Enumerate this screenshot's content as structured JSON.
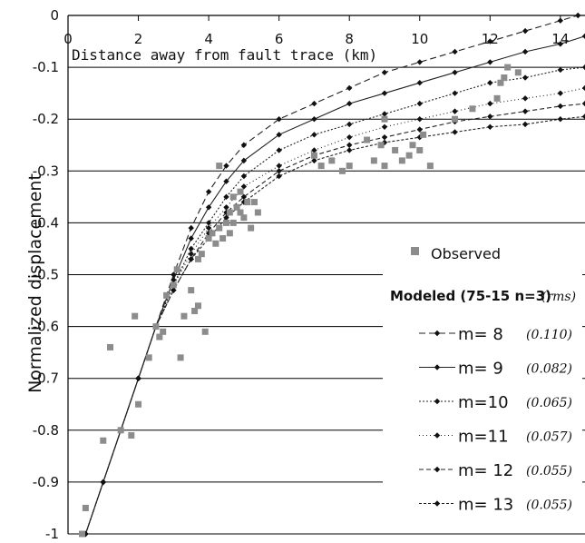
{
  "chart_data": {
    "type": "scatter",
    "title": "",
    "xlabel": "Distance away from fault trace (km)",
    "ylabel": "Normalized displacement",
    "xlim": [
      0,
      14.7
    ],
    "ylim": [
      -1,
      0
    ],
    "x_ticks": [
      "0",
      "2",
      "4",
      "6",
      "8",
      "10",
      "12",
      "14"
    ],
    "y_ticks": [
      "0",
      "-0.1",
      "-0.2",
      "-0.3",
      "-0.4",
      "-0.5",
      "-0.6",
      "-0.7",
      "-0.8",
      "-0.9",
      "-1"
    ],
    "grid": "horizontal",
    "legend_position": "right",
    "legend": {
      "observed_label": "Observed",
      "modeled_title": "Modeled (75-15 n=3)",
      "modeled_unit": "(rms)"
    },
    "observed": {
      "name": "Observed",
      "color": "#8c8c8c",
      "points": [
        [
          0.4,
          -1.0
        ],
        [
          0.5,
          -0.95
        ],
        [
          1.0,
          -0.82
        ],
        [
          1.2,
          -0.64
        ],
        [
          1.5,
          -0.8
        ],
        [
          1.8,
          -0.81
        ],
        [
          1.9,
          -0.58
        ],
        [
          2.0,
          -0.75
        ],
        [
          2.3,
          -0.66
        ],
        [
          2.5,
          -0.6
        ],
        [
          2.6,
          -0.62
        ],
        [
          2.7,
          -0.61
        ],
        [
          2.8,
          -0.54
        ],
        [
          3.0,
          -0.52
        ],
        [
          3.1,
          -0.49
        ],
        [
          3.2,
          -0.66
        ],
        [
          3.3,
          -0.58
        ],
        [
          3.5,
          -0.53
        ],
        [
          3.6,
          -0.57
        ],
        [
          3.7,
          -0.56
        ],
        [
          3.9,
          -0.61
        ],
        [
          3.7,
          -0.47
        ],
        [
          3.8,
          -0.46
        ],
        [
          4.0,
          -0.43
        ],
        [
          4.1,
          -0.42
        ],
        [
          4.2,
          -0.44
        ],
        [
          4.3,
          -0.29
        ],
        [
          4.3,
          -0.41
        ],
        [
          4.4,
          -0.43
        ],
        [
          4.5,
          -0.4
        ],
        [
          4.6,
          -0.38
        ],
        [
          4.6,
          -0.42
        ],
        [
          4.7,
          -0.35
        ],
        [
          4.7,
          -0.4
        ],
        [
          4.8,
          -0.37
        ],
        [
          4.9,
          -0.34
        ],
        [
          4.9,
          -0.38
        ],
        [
          5.0,
          -0.39
        ],
        [
          5.1,
          -0.36
        ],
        [
          5.2,
          -0.41
        ],
        [
          5.3,
          -0.36
        ],
        [
          5.4,
          -0.38
        ],
        [
          7.0,
          -0.27
        ],
        [
          7.2,
          -0.29
        ],
        [
          7.5,
          -0.28
        ],
        [
          7.8,
          -0.3
        ],
        [
          8.0,
          -0.29
        ],
        [
          8.5,
          -0.24
        ],
        [
          8.7,
          -0.28
        ],
        [
          8.9,
          -0.25
        ],
        [
          9.0,
          -0.29
        ],
        [
          9.0,
          -0.2
        ],
        [
          9.3,
          -0.26
        ],
        [
          9.5,
          -0.28
        ],
        [
          9.7,
          -0.27
        ],
        [
          9.8,
          -0.25
        ],
        [
          10.0,
          -0.26
        ],
        [
          10.1,
          -0.23
        ],
        [
          10.3,
          -0.29
        ],
        [
          11.0,
          -0.2
        ],
        [
          11.5,
          -0.18
        ],
        [
          12.2,
          -0.16
        ],
        [
          12.3,
          -0.13
        ],
        [
          12.4,
          -0.12
        ],
        [
          12.5,
          -0.1
        ],
        [
          12.8,
          -0.11
        ]
      ]
    },
    "series": [
      {
        "name": "m=  8",
        "m": "8",
        "rms": "(0.110)",
        "dash": "7 4",
        "points": [
          [
            0.5,
            -1.0
          ],
          [
            1.0,
            -0.9
          ],
          [
            1.5,
            -0.8
          ],
          [
            2.0,
            -0.7
          ],
          [
            2.5,
            -0.6
          ],
          [
            3.0,
            -0.5
          ],
          [
            3.5,
            -0.41
          ],
          [
            4.0,
            -0.34
          ],
          [
            4.5,
            -0.29
          ],
          [
            5.0,
            -0.25
          ],
          [
            6.0,
            -0.2
          ],
          [
            7.0,
            -0.17
          ],
          [
            8.0,
            -0.14
          ],
          [
            9.0,
            -0.11
          ],
          [
            10.0,
            -0.09
          ],
          [
            11.0,
            -0.07
          ],
          [
            12.0,
            -0.05
          ],
          [
            13.0,
            -0.03
          ],
          [
            14.0,
            -0.01
          ],
          [
            14.5,
            0.0
          ]
        ]
      },
      {
        "name": "m=  9",
        "m": "9",
        "rms": "(0.082)",
        "dash": "",
        "points": [
          [
            0.5,
            -1.0
          ],
          [
            1.0,
            -0.9
          ],
          [
            1.5,
            -0.8
          ],
          [
            2.0,
            -0.7
          ],
          [
            2.5,
            -0.6
          ],
          [
            3.0,
            -0.51
          ],
          [
            3.5,
            -0.43
          ],
          [
            4.0,
            -0.37
          ],
          [
            4.5,
            -0.32
          ],
          [
            5.0,
            -0.28
          ],
          [
            6.0,
            -0.23
          ],
          [
            7.0,
            -0.2
          ],
          [
            8.0,
            -0.17
          ],
          [
            9.0,
            -0.15
          ],
          [
            10.0,
            -0.13
          ],
          [
            11.0,
            -0.11
          ],
          [
            12.0,
            -0.09
          ],
          [
            13.0,
            -0.07
          ],
          [
            14.0,
            -0.055
          ],
          [
            14.7,
            -0.04
          ]
        ]
      },
      {
        "name": "m=10",
        "m": "10",
        "rms": "(0.065)",
        "dash": "2 2",
        "points": [
          [
            0.5,
            -1.0
          ],
          [
            1.0,
            -0.9
          ],
          [
            1.5,
            -0.8
          ],
          [
            2.0,
            -0.7
          ],
          [
            2.5,
            -0.6
          ],
          [
            3.0,
            -0.52
          ],
          [
            3.5,
            -0.45
          ],
          [
            4.0,
            -0.4
          ],
          [
            4.5,
            -0.35
          ],
          [
            5.0,
            -0.31
          ],
          [
            6.0,
            -0.26
          ],
          [
            7.0,
            -0.23
          ],
          [
            8.0,
            -0.21
          ],
          [
            9.0,
            -0.19
          ],
          [
            10.0,
            -0.17
          ],
          [
            11.0,
            -0.15
          ],
          [
            12.0,
            -0.13
          ],
          [
            13.0,
            -0.12
          ],
          [
            14.0,
            -0.105
          ],
          [
            14.7,
            -0.1
          ]
        ]
      },
      {
        "name": "m=11",
        "m": "11",
        "rms": "(0.057)",
        "dash": "1 3",
        "points": [
          [
            0.5,
            -1.0
          ],
          [
            1.0,
            -0.9
          ],
          [
            1.5,
            -0.8
          ],
          [
            2.0,
            -0.7
          ],
          [
            2.5,
            -0.6
          ],
          [
            3.0,
            -0.52
          ],
          [
            3.5,
            -0.46
          ],
          [
            4.0,
            -0.41
          ],
          [
            4.5,
            -0.37
          ],
          [
            5.0,
            -0.33
          ],
          [
            6.0,
            -0.29
          ],
          [
            7.0,
            -0.26
          ],
          [
            8.0,
            -0.235
          ],
          [
            9.0,
            -0.215
          ],
          [
            10.0,
            -0.2
          ],
          [
            11.0,
            -0.185
          ],
          [
            12.0,
            -0.17
          ],
          [
            13.0,
            -0.16
          ],
          [
            14.0,
            -0.15
          ],
          [
            14.7,
            -0.14
          ]
        ]
      },
      {
        "name": "m= 12",
        "m": "12",
        "rms": "(0.055)",
        "dash": "5 3",
        "points": [
          [
            0.5,
            -1.0
          ],
          [
            1.0,
            -0.9
          ],
          [
            1.5,
            -0.8
          ],
          [
            2.0,
            -0.7
          ],
          [
            2.5,
            -0.6
          ],
          [
            3.0,
            -0.53
          ],
          [
            3.5,
            -0.47
          ],
          [
            4.0,
            -0.42
          ],
          [
            4.5,
            -0.38
          ],
          [
            5.0,
            -0.35
          ],
          [
            6.0,
            -0.3
          ],
          [
            7.0,
            -0.27
          ],
          [
            8.0,
            -0.25
          ],
          [
            9.0,
            -0.235
          ],
          [
            10.0,
            -0.22
          ],
          [
            11.0,
            -0.205
          ],
          [
            12.0,
            -0.195
          ],
          [
            13.0,
            -0.185
          ],
          [
            14.0,
            -0.175
          ],
          [
            14.7,
            -0.17
          ]
        ]
      },
      {
        "name": "m= 13",
        "m": "13",
        "rms": "(0.055)",
        "dash": "3 2",
        "points": [
          [
            0.5,
            -1.0
          ],
          [
            1.0,
            -0.9
          ],
          [
            1.5,
            -0.8
          ],
          [
            2.0,
            -0.7
          ],
          [
            2.5,
            -0.6
          ],
          [
            3.0,
            -0.53
          ],
          [
            3.5,
            -0.47
          ],
          [
            4.0,
            -0.43
          ],
          [
            4.5,
            -0.39
          ],
          [
            5.0,
            -0.36
          ],
          [
            6.0,
            -0.31
          ],
          [
            7.0,
            -0.28
          ],
          [
            8.0,
            -0.26
          ],
          [
            9.0,
            -0.245
          ],
          [
            10.0,
            -0.235
          ],
          [
            11.0,
            -0.225
          ],
          [
            12.0,
            -0.215
          ],
          [
            13.0,
            -0.21
          ],
          [
            14.0,
            -0.2
          ],
          [
            14.7,
            -0.195
          ]
        ]
      }
    ]
  }
}
